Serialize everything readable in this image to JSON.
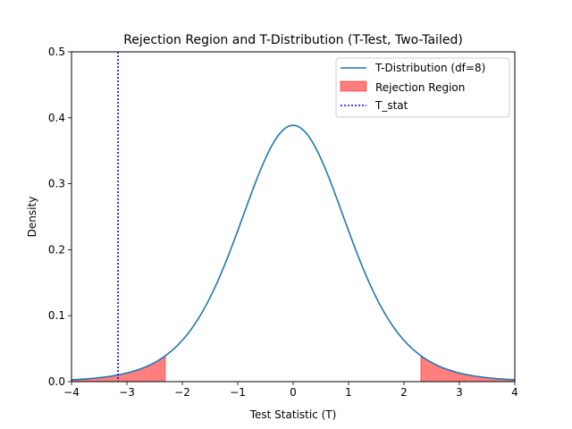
{
  "chart_data": {
    "type": "line",
    "title": "Rejection Region and T-Distribution (T-Test, Two-Tailed)",
    "xlabel": "Test Statistic (T)",
    "ylabel": "Density",
    "xlim": [
      -4,
      4
    ],
    "ylim": [
      0,
      0.5
    ],
    "x_ticks": [
      -4,
      -3,
      -2,
      -1,
      0,
      1,
      2,
      3,
      4
    ],
    "x_tick_labels": [
      "−4",
      "−3",
      "−2",
      "−1",
      "0",
      "1",
      "2",
      "3",
      "4"
    ],
    "y_ticks": [
      0,
      0.1,
      0.2,
      0.3,
      0.4,
      0.5
    ],
    "y_tick_labels": [
      "0.0",
      "0.1",
      "0.2",
      "0.3",
      "0.4",
      "0.5"
    ],
    "grid": false,
    "legend_position": "top-right",
    "df": 8,
    "critical_value": 2.306,
    "t_stat": -3.16,
    "series": [
      {
        "name": "T-Distribution (df=8)",
        "color": "#1f77b4",
        "x": [
          -4.0,
          -3.5,
          -3.0,
          -2.5,
          -2.306,
          -2.0,
          -1.5,
          -1.0,
          -0.5,
          0.0,
          0.5,
          1.0,
          1.5,
          2.0,
          2.306,
          2.5,
          3.0,
          3.5,
          4.0
        ],
        "y": [
          0.0034,
          0.007,
          0.015,
          0.03,
          0.038,
          0.058,
          0.12,
          0.232,
          0.341,
          0.387,
          0.341,
          0.232,
          0.12,
          0.058,
          0.038,
          0.03,
          0.015,
          0.007,
          0.0034
        ]
      }
    ],
    "rejection_region": {
      "name": "Rejection Region",
      "color": "#ff0000",
      "opacity": 0.5
    },
    "t_stat_line": {
      "name": "T_stat",
      "color": "#0000ff"
    }
  }
}
